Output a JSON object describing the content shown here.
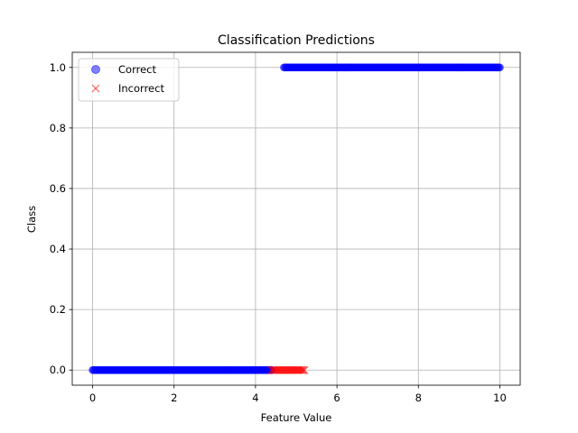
{
  "chart_data": {
    "type": "scatter",
    "title": "Classification Predictions",
    "xlabel": "Feature Value",
    "ylabel": "Class",
    "xlim": [
      -0.5,
      10.5
    ],
    "ylim": [
      -0.05,
      1.05
    ],
    "xticks": [
      "0",
      "2",
      "4",
      "6",
      "8",
      "10"
    ],
    "yticks": [
      "0.0",
      "0.2",
      "0.4",
      "0.6",
      "0.8",
      "1.0"
    ],
    "grid": true,
    "legend_position": "top-left",
    "series": [
      {
        "name": "Correct",
        "marker": "circle",
        "color": "#0000ff",
        "alpha": 0.5,
        "segments": [
          {
            "x_start": 0.0,
            "x_end": 4.4,
            "y": 0
          },
          {
            "x_start": 4.7,
            "x_end": 10.0,
            "y": 1
          }
        ]
      },
      {
        "name": "Incorrect",
        "marker": "x",
        "color": "#ff0000",
        "alpha": 0.5,
        "segments": [
          {
            "x_start": 4.4,
            "x_end": 5.2,
            "y": 0
          }
        ]
      }
    ]
  }
}
